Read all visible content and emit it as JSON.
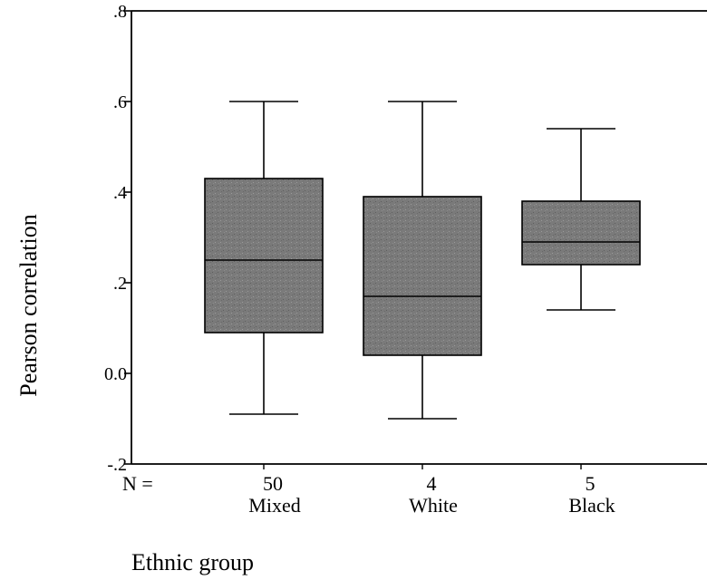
{
  "chart_data": {
    "type": "box",
    "ylabel": "Pearson correlation",
    "xlabel": "Ethnic group",
    "ylim": [
      -0.2,
      0.8
    ],
    "yticks": [
      {
        "value": 0.8,
        "label": ".8"
      },
      {
        "value": 0.6,
        "label": ".6"
      },
      {
        "value": 0.4,
        "label": ".4"
      },
      {
        "value": 0.2,
        "label": ".2"
      },
      {
        "value": 0.0,
        "label": "0.0"
      },
      {
        "value": -0.2,
        "label": "-.2"
      }
    ],
    "n_prefix": "N =",
    "groups": [
      {
        "category": "Mixed",
        "n": "50",
        "min": -0.09,
        "q1": 0.09,
        "median": 0.25,
        "q3": 0.43,
        "max": 0.6
      },
      {
        "category": "White",
        "n": "4",
        "min": -0.1,
        "q1": 0.04,
        "median": 0.17,
        "q3": 0.39,
        "max": 0.6
      },
      {
        "category": "Black",
        "n": "5",
        "min": 0.14,
        "q1": 0.24,
        "median": 0.29,
        "q3": 0.38,
        "max": 0.54
      }
    ],
    "box_color": "#7a7a7a",
    "grid": false,
    "legend": "none"
  }
}
